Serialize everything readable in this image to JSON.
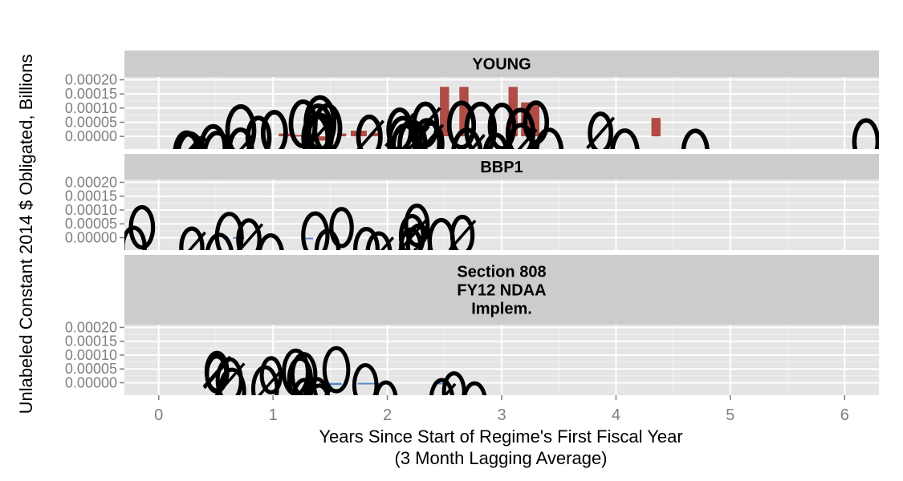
{
  "chart_data": {
    "type": "bar",
    "ylabel": "Unlabeled Constant 2014 $ Obligated, Billions",
    "xlabel_line1": "Years Since Start of Regime's First Fiscal Year",
    "xlabel_line2": "(3 Month Lagging Average)",
    "xlim": [
      -0.3,
      6.3
    ],
    "ylim": [
      -4.5e-05,
      0.00021
    ],
    "x_ticks": [
      "0",
      "1",
      "2",
      "3",
      "4",
      "5",
      "6"
    ],
    "y_ticks": [
      "0.00000",
      "0.00005",
      "0.00010",
      "0.00015",
      "0.00020"
    ],
    "panels": [
      {
        "strip": [
          "YOUNG"
        ],
        "color": "#B04B45",
        "bars": [
          {
            "x": 1.1,
            "w": 0.1,
            "y": 1e-05
          },
          {
            "x": 1.2,
            "w": 0.1,
            "y": 5e-06
          },
          {
            "x": 1.3,
            "w": 0.1,
            "y": -5e-06
          },
          {
            "x": 1.45,
            "w": 0.15,
            "y": -1.5e-05
          },
          {
            "x": 1.6,
            "w": 0.08,
            "y": 1e-05
          },
          {
            "x": 1.75,
            "w": 0.14,
            "y": 2e-05
          },
          {
            "x": 1.9,
            "w": 0.1,
            "y": 1.2e-05
          },
          {
            "x": 2.5,
            "w": 0.08,
            "y": 0.000175
          },
          {
            "x": 2.67,
            "w": 0.08,
            "y": 0.000175
          },
          {
            "x": 3.1,
            "w": 0.08,
            "y": 0.000175
          },
          {
            "x": 3.25,
            "w": 0.16,
            "y": 0.00012
          },
          {
            "x": 4.35,
            "w": 0.08,
            "y": 6.5e-05
          }
        ]
      },
      {
        "strip": [
          "BBP1"
        ],
        "color": "#5C87C2",
        "bars": [
          {
            "x": 0.7,
            "w": 0.1,
            "y": 2e-06
          },
          {
            "x": 1.3,
            "w": 0.1,
            "y": -2e-06
          }
        ]
      },
      {
        "strip": [
          "Section 808",
          "FY12 NDAA",
          "Implem."
        ],
        "color": "#5C87C2",
        "bars": [
          {
            "x": 1.5,
            "w": 0.2,
            "y": -8e-06
          },
          {
            "x": 1.85,
            "w": 0.22,
            "y": -6e-06
          },
          {
            "x": 2.45,
            "w": 0.08,
            "y": -4e-06
          }
        ]
      }
    ]
  }
}
